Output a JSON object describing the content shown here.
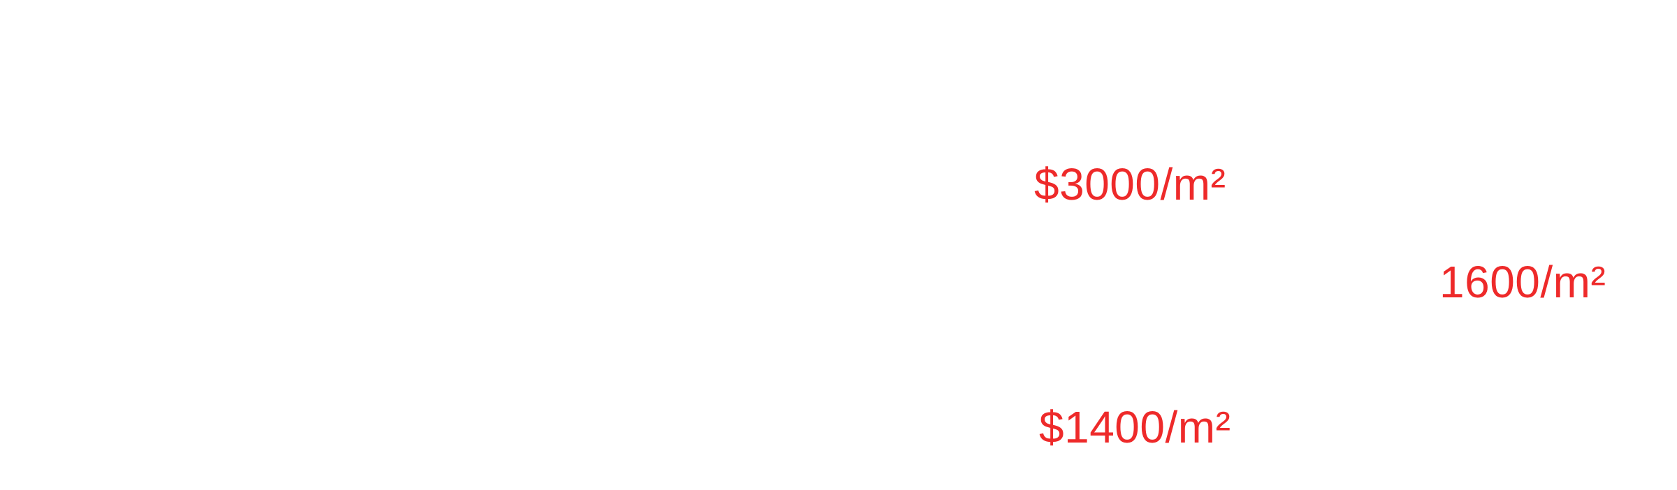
{
  "labels": {
    "top": "$3000/m²",
    "right": "1600/m²",
    "bottom": "$1400/m²"
  },
  "colors": {
    "label": "#ee2a2a",
    "background": "#ffffff"
  }
}
